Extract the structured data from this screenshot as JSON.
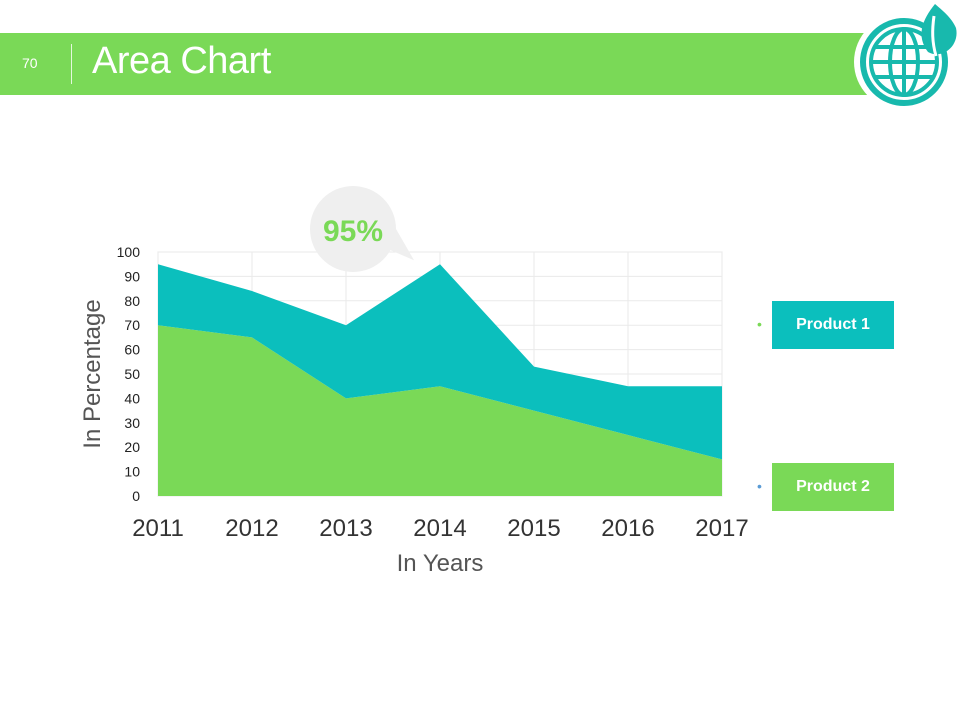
{
  "slide": {
    "number": "70",
    "title": "Area Chart"
  },
  "colors": {
    "banner": "#7ad957",
    "product1": "#0bbfbd",
    "product2": "#7ad957",
    "callout_bg": "#efefef",
    "callout_text": "#7ad957"
  },
  "chart_data": {
    "type": "area",
    "stacked": true,
    "categories": [
      "2011",
      "2012",
      "2013",
      "2014",
      "2015",
      "2016",
      "2017"
    ],
    "series": [
      {
        "name": "Product 2",
        "values": [
          70,
          65,
          40,
          45,
          35,
          25,
          15
        ]
      },
      {
        "name": "Product 1",
        "values": [
          25,
          19,
          30,
          50,
          18,
          20,
          30
        ]
      }
    ],
    "yticks": [
      "0",
      "10",
      "20",
      "30",
      "40",
      "50",
      "60",
      "70",
      "80",
      "90",
      "100"
    ],
    "ylim": [
      0,
      100
    ],
    "xlabel": "In Years",
    "ylabel": "In Percentage",
    "callout": {
      "label": "95%",
      "category": "2014",
      "value": 95
    },
    "grid": true,
    "legend": [
      "Product 1",
      "Product 2"
    ]
  }
}
